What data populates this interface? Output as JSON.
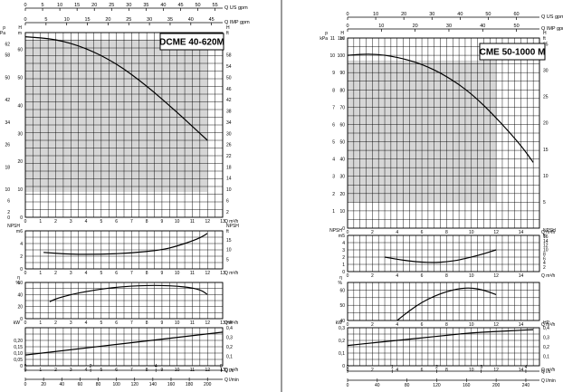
{
  "chart_data": [
    {
      "type": "line",
      "title": "DCME 40-620M",
      "top_axes": [
        {
          "label": "Q US gpm",
          "ticks": [
            "0",
            "5",
            "10",
            "15",
            "20",
            "25",
            "30",
            "35",
            "40",
            "45",
            "50",
            "55"
          ]
        },
        {
          "label": "Q IMP gpm",
          "ticks": [
            "0",
            "5",
            "10",
            "15",
            "20",
            "25",
            "30",
            "35",
            "40",
            "45"
          ]
        }
      ],
      "panels": [
        {
          "id": "head",
          "ylabel_left": [
            "p",
            "kPa"
          ],
          "ylabel_left2": [
            "H",
            "m"
          ],
          "ylabel_right": [
            "H",
            "ft"
          ],
          "xlabel": "Q m³/h",
          "x_ticks": [
            "0",
            "1",
            "2",
            "3",
            "4",
            "5",
            "6",
            "7",
            "8",
            "9",
            "10",
            "11",
            "12",
            "13"
          ],
          "ylim": [
            0,
            66
          ],
          "left_ticks": [
            {
              "v": 0,
              "t": "0"
            },
            {
              "v": 10,
              "t": "10"
            },
            {
              "v": 20,
              "t": "20"
            },
            {
              "v": 30,
              "t": "30"
            },
            {
              "v": 40,
              "t": "40"
            },
            {
              "v": 50,
              "t": "50"
            },
            {
              "v": 60,
              "t": "60"
            }
          ],
          "left2_ticks": [
            {
              "v": 0,
              "t": "0"
            },
            {
              "v": 2,
              "t": "2"
            },
            {
              "v": 6,
              "t": "6"
            },
            {
              "v": 10,
              "t": "10"
            },
            {
              "v": 18,
              "t": "18"
            },
            {
              "v": 26,
              "t": "26"
            },
            {
              "v": 34,
              "t": "34"
            },
            {
              "v": 42,
              "t": "42"
            },
            {
              "v": 50,
              "t": "50"
            },
            {
              "v": 58,
              "t": "58"
            },
            {
              "v": 62,
              "t": "62"
            }
          ],
          "right_ticks": [
            {
              "v": 2,
              "t": "2"
            },
            {
              "v": 6,
              "t": "6"
            },
            {
              "v": 10,
              "t": "10"
            },
            {
              "v": 14,
              "t": "14"
            },
            {
              "v": 18,
              "t": "18"
            },
            {
              "v": 22,
              "t": "22"
            },
            {
              "v": 26,
              "t": "26"
            },
            {
              "v": 30,
              "t": "30"
            },
            {
              "v": 34,
              "t": "34"
            },
            {
              "v": 38,
              "t": "38"
            },
            {
              "v": 42,
              "t": "42"
            },
            {
              "v": 46,
              "t": "46"
            },
            {
              "v": 50,
              "t": "50"
            },
            {
              "v": 54,
              "t": "54"
            },
            {
              "v": 58,
              "t": "58"
            }
          ],
          "op_area": {
            "x": [
              0,
              12
            ],
            "y": [
              9,
              63.5
            ]
          },
          "curve": {
            "x": [
              0,
              2,
              4,
              6,
              8,
              10,
              11,
              12
            ],
            "y": [
              64.5,
              63.7,
              60.5,
              55,
              47,
              37.5,
              32.5,
              27.5
            ]
          }
        },
        {
          "id": "npsh",
          "ylabel_left": [
            "NPSH",
            "m"
          ],
          "ylabel_right": [
            "NPSH",
            "ft"
          ],
          "xlabel": "Q m³/h",
          "x_ticks": [
            "0",
            "1",
            "2",
            "3",
            "4",
            "5",
            "6",
            "7",
            "8",
            "9",
            "10",
            "11",
            "12",
            "13"
          ],
          "ylim": [
            0,
            6
          ],
          "left_ticks": [
            {
              "v": 0,
              "t": "0"
            },
            {
              "v": 2,
              "t": "2"
            },
            {
              "v": 4,
              "t": "4"
            },
            {
              "v": 6,
              "t": "6"
            }
          ],
          "right_ticks": [
            {
              "v": 1.52,
              "t": "5"
            },
            {
              "v": 3.05,
              "t": "10"
            },
            {
              "v": 4.57,
              "t": "15"
            }
          ],
          "curve": {
            "x": [
              1.2,
              3,
              5,
              7,
              9,
              10,
              11,
              11.6,
              12
            ],
            "y": [
              2.6,
              2.3,
              2.3,
              2.5,
              3.0,
              3.6,
              4.4,
              5.0,
              5.6
            ]
          }
        },
        {
          "id": "eta",
          "ylabel_left": [
            "η",
            "%"
          ],
          "xlabel": "Q m³/h",
          "x_ticks": [
            "0",
            "1",
            "2",
            "3",
            "4",
            "5",
            "6",
            "7",
            "8",
            "9",
            "10",
            "11",
            "12",
            "13"
          ],
          "ylim": [
            0,
            60
          ],
          "left_ticks": [
            {
              "v": 0,
              "t": "0"
            },
            {
              "v": 20,
              "t": "20"
            },
            {
              "v": 40,
              "t": "40"
            },
            {
              "v": 60,
              "t": "60"
            }
          ],
          "curve": {
            "x": [
              1.6,
              2,
              3,
              4,
              5,
              6,
              7,
              8,
              9,
              10,
              11,
              11.6,
              12
            ],
            "y": [
              28,
              33,
              40,
              45,
              49,
              52,
              54,
              55,
              55,
              54,
              51,
              47,
              40
            ]
          }
        },
        {
          "id": "power",
          "ylabel_left": [
            "kW"
          ],
          "ylabel_right": [
            "HP"
          ],
          "xlabel": "Q m³/h",
          "x_ticks": [
            "0",
            "1",
            "2",
            "3",
            "4",
            "5",
            "6",
            "7",
            "8",
            "9",
            "10",
            "11",
            "12",
            "13"
          ],
          "ylim": [
            0,
            0.3
          ],
          "left_ticks": [
            {
              "v": 0,
              "t": "0"
            },
            {
              "v": 0.05,
              "t": "0,05"
            },
            {
              "v": 0.1,
              "t": "0,10"
            },
            {
              "v": 0.15,
              "t": "0,15"
            },
            {
              "v": 0.2,
              "t": "0,20"
            }
          ],
          "right_ticks": [
            {
              "v": 0.0746,
              "t": "0,1"
            },
            {
              "v": 0.1492,
              "t": "0,2"
            },
            {
              "v": 0.2238,
              "t": "0,3"
            },
            {
              "v": 0.2984,
              "t": "0,4"
            }
          ],
          "curve": {
            "x": [
              0,
              13
            ],
            "y": [
              0.085,
              0.265
            ]
          }
        }
      ],
      "bottom_axes": [
        {
          "label": "Q l/s",
          "ticks": [
            "0",
            "2",
            "4",
            "6"
          ]
        },
        {
          "label": "Q l/min",
          "ticks": [
            "0",
            "20",
            "40",
            "60",
            "80",
            "100",
            "120",
            "140",
            "160",
            "180",
            "200"
          ]
        }
      ]
    },
    {
      "type": "line",
      "title": "CME 50-1000 M",
      "top_axes": [
        {
          "label": "Q US gpm",
          "ticks": [
            "0",
            "10",
            "20",
            "30",
            "40",
            "50",
            "60"
          ]
        },
        {
          "label": "Q IMP gpm",
          "ticks": [
            "0",
            "10",
            "20",
            "30",
            "40",
            "50"
          ]
        }
      ],
      "panels": [
        {
          "id": "head",
          "ylabel_left": [
            "p",
            "kPa"
          ],
          "ylabel_left2": [
            "H",
            "m"
          ],
          "ylabel_right": [
            "H",
            "ft"
          ],
          "xlabel": "Q m³/h",
          "x_ticks": [
            "0",
            "2",
            "4",
            "6",
            "8",
            "10",
            "12",
            "14"
          ],
          "ylim": [
            0,
            110
          ],
          "left_ticks": [
            {
              "v": 0,
              "t": "0"
            },
            {
              "v": 10,
              "t": "10"
            },
            {
              "v": 20,
              "t": "20"
            },
            {
              "v": 30,
              "t": "30"
            },
            {
              "v": 40,
              "t": "40"
            },
            {
              "v": 50,
              "t": "50"
            },
            {
              "v": 60,
              "t": "60"
            },
            {
              "v": 70,
              "t": "70"
            },
            {
              "v": 80,
              "t": "80"
            },
            {
              "v": 90,
              "t": "90"
            },
            {
              "v": 100,
              "t": "100"
            },
            {
              "v": 110,
              "t": "110"
            }
          ],
          "left2_ticks": [
            {
              "v": 10,
              "t": "1"
            },
            {
              "v": 20,
              "t": "2"
            },
            {
              "v": 30,
              "t": "3"
            },
            {
              "v": 40,
              "t": "4"
            },
            {
              "v": 50,
              "t": "5"
            },
            {
              "v": 60,
              "t": "6"
            },
            {
              "v": 70,
              "t": "7"
            },
            {
              "v": 80,
              "t": "8"
            },
            {
              "v": 90,
              "t": "9"
            },
            {
              "v": 100,
              "t": "10"
            },
            {
              "v": 110,
              "t": "11"
            }
          ],
          "right_ticks": [
            {
              "v": 15.2,
              "t": "5"
            },
            {
              "v": 30.5,
              "t": "10"
            },
            {
              "v": 45.7,
              "t": "15"
            },
            {
              "v": 61,
              "t": "20"
            },
            {
              "v": 76.2,
              "t": "25"
            },
            {
              "v": 91.4,
              "t": "30"
            },
            {
              "v": 106.7,
              "t": "35"
            }
          ],
          "op_area": {
            "x": [
              0,
              12
            ],
            "y": [
              15,
              97
            ]
          },
          "curve": {
            "x": [
              0,
              2,
              4,
              6,
              8,
              10,
              12,
              14,
              15
            ],
            "y": [
              100,
              101,
              99,
              95,
              88,
              78,
              64,
              48,
              38
            ]
          }
        },
        {
          "id": "npsh",
          "ylabel_left": [
            "NPSH",
            "m"
          ],
          "ylabel_right": [
            "NPSH",
            "ft"
          ],
          "xlabel": "Q m³/h",
          "x_ticks": [
            "0",
            "2",
            "4",
            "6",
            "8",
            "10",
            "12",
            "14"
          ],
          "ylim": [
            0,
            5
          ],
          "left_ticks": [
            {
              "v": 0,
              "t": "0"
            },
            {
              "v": 1,
              "t": "1"
            },
            {
              "v": 2,
              "t": "2"
            },
            {
              "v": 3,
              "t": "3"
            },
            {
              "v": 4,
              "t": "4"
            },
            {
              "v": 5,
              "t": "5"
            }
          ],
          "right_ticks": [
            {
              "v": 0.61,
              "t": "2"
            },
            {
              "v": 1.22,
              "t": "4"
            },
            {
              "v": 1.83,
              "t": "6"
            },
            {
              "v": 2.44,
              "t": "8"
            },
            {
              "v": 3.05,
              "t": "10"
            },
            {
              "v": 3.66,
              "t": "12"
            },
            {
              "v": 4.27,
              "t": "14"
            },
            {
              "v": 4.88,
              "t": "16"
            }
          ],
          "curve": {
            "x": [
              3,
              4,
              5,
              6,
              7,
              8,
              9,
              10,
              11,
              12
            ],
            "y": [
              2.0,
              1.7,
              1.45,
              1.3,
              1.25,
              1.35,
              1.6,
              2.0,
              2.45,
              3.0
            ]
          }
        },
        {
          "id": "eta",
          "ylabel_left": [
            "η",
            "%"
          ],
          "xlabel": "Q m³/h",
          "x_ticks": [
            "0",
            "2",
            "4",
            "6",
            "8",
            "10",
            "12",
            "14"
          ],
          "ylim": [
            40,
            65
          ],
          "left_ticks": [
            {
              "v": 40,
              "t": "40"
            },
            {
              "v": 50,
              "t": "50"
            },
            {
              "v": 60,
              "t": "60"
            }
          ],
          "curve": {
            "x": [
              4,
              5,
              6,
              7,
              8,
              9,
              10,
              11,
              12
            ],
            "y": [
              40,
              46.5,
              52,
              56,
              59,
              61,
              61.5,
              60,
              57
            ]
          }
        },
        {
          "id": "power",
          "ylabel_left": [
            "kW"
          ],
          "ylabel_right": [
            "HP"
          ],
          "xlabel": "Q m³/h",
          "x_ticks": [
            "0",
            "2",
            "4",
            "6",
            "8",
            "10",
            "12",
            "14"
          ],
          "ylim": [
            0,
            0.3
          ],
          "left_ticks": [
            {
              "v": 0,
              "t": "0"
            },
            {
              "v": 0.1,
              "t": "0,1"
            },
            {
              "v": 0.2,
              "t": "0,2"
            },
            {
              "v": 0.3,
              "t": "0,3"
            }
          ],
          "right_ticks": [
            {
              "v": 0.0746,
              "t": "0,1"
            },
            {
              "v": 0.1492,
              "t": "0,2"
            },
            {
              "v": 0.2238,
              "t": "0,3"
            },
            {
              "v": 0.2984,
              "t": "0,4"
            }
          ],
          "curve": {
            "x": [
              0,
              2,
              4,
              6,
              8,
              10,
              12,
              14,
              15
            ],
            "y": [
              0.16,
              0.18,
              0.2,
              0.22,
              0.24,
              0.26,
              0.27,
              0.28,
              0.285
            ]
          }
        }
      ],
      "bottom_axes": [
        {
          "label": "Q l/s",
          "ticks": [
            "0",
            "1",
            "2",
            "3",
            "4"
          ]
        },
        {
          "label": "Q l/min",
          "ticks": [
            "0",
            "40",
            "80",
            "120",
            "160",
            "200",
            "240"
          ]
        }
      ]
    }
  ]
}
